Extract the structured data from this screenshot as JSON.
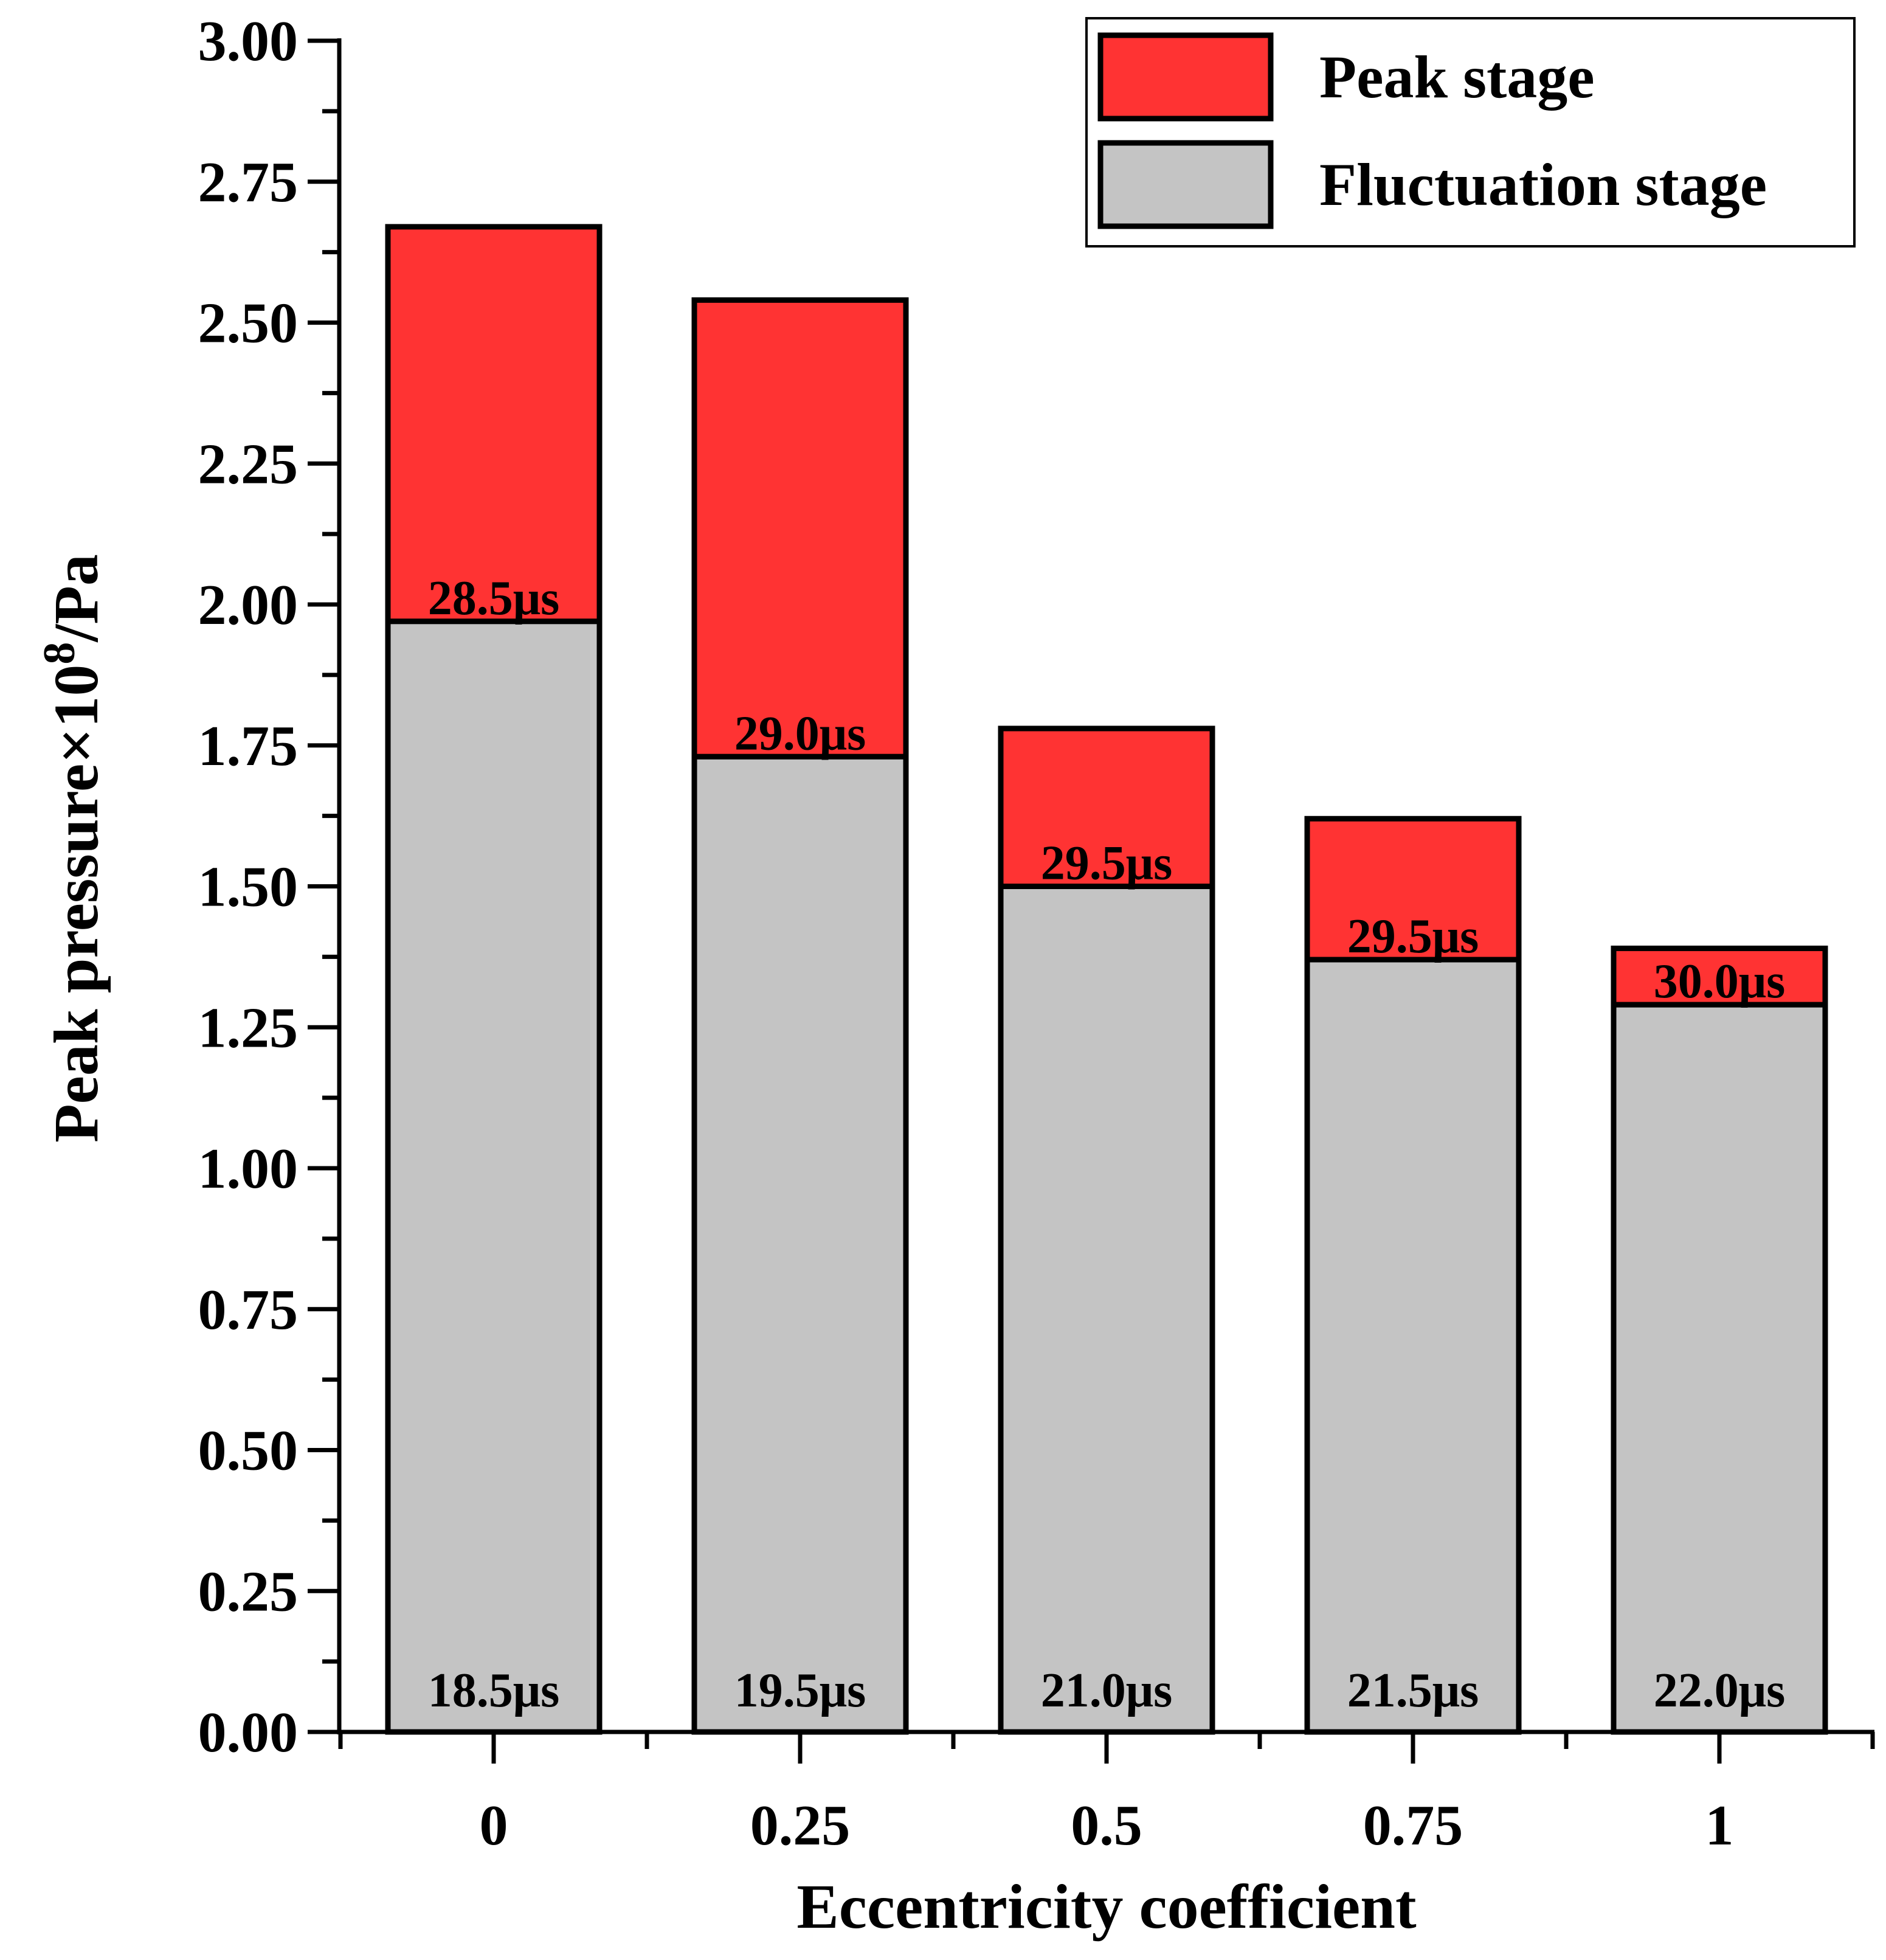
{
  "chart_data": {
    "type": "bar",
    "stacked": true,
    "xlabel": "Eccentricity coefficient",
    "ylabel_main": "Peak pressure×10",
    "ylabel_sup": "8",
    "ylabel_tail": "/Pa",
    "categories": [
      "0",
      "0.25",
      "0.5",
      "0.75",
      "1"
    ],
    "ylim": [
      0,
      3
    ],
    "yticks": [
      "0.00",
      "0.25",
      "0.50",
      "0.75",
      "1.00",
      "1.25",
      "1.50",
      "1.75",
      "2.00",
      "2.25",
      "2.50",
      "2.75",
      "3.00"
    ],
    "ytick_values": [
      0,
      0.25,
      0.5,
      0.75,
      1.0,
      1.25,
      1.5,
      1.75,
      2.0,
      2.25,
      2.5,
      2.75,
      3.0
    ],
    "series": [
      {
        "name": "Fluctuation stage",
        "color": "#c4c4c4",
        "values": [
          1.97,
          1.73,
          1.5,
          1.37,
          1.29
        ],
        "labels": [
          "18.5μs",
          "19.5μs",
          "21.0μs",
          "21.5μs",
          "22.0μs"
        ]
      },
      {
        "name": "Peak stage",
        "color": "#ff3333",
        "totals": [
          2.67,
          2.54,
          1.78,
          1.62,
          1.39
        ],
        "values": [
          0.7,
          0.81,
          0.28,
          0.25,
          0.1
        ],
        "labels": [
          "28.5μs",
          "29.0μs",
          "29.5μs",
          "29.5μs",
          "30.0μs"
        ]
      }
    ],
    "legend": [
      {
        "name": "Peak stage",
        "color": "#ff3333"
      },
      {
        "name": "Fluctuation stage",
        "color": "#c4c4c4"
      }
    ],
    "legend_position": "top-right"
  }
}
